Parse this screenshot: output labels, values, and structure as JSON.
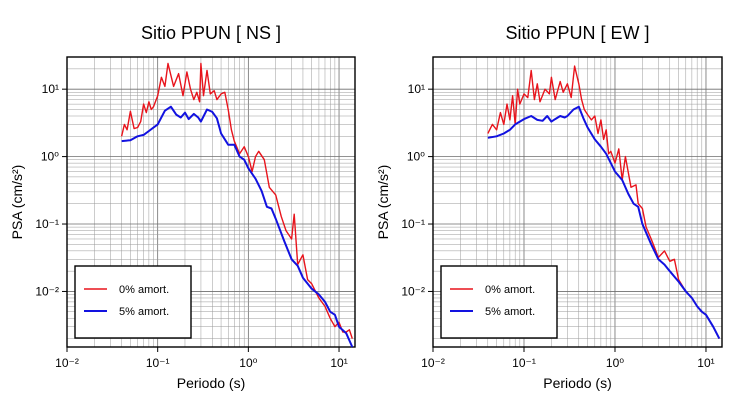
{
  "chart_data": [
    {
      "type": "line",
      "title": "Sitio PPUN [ NS ]",
      "xlabel": "Periodo (s)",
      "ylabel": "PSA (cm/s²)",
      "xscale": "log",
      "yscale": "log",
      "xlim": [
        0.01,
        15
      ],
      "ylim": [
        0.0015,
        30
      ],
      "xticks": [
        "10⁻²",
        "10⁻¹",
        "10⁰",
        "10¹"
      ],
      "yticks": [
        "10⁻²",
        "10⁻¹",
        "10⁰",
        "10¹"
      ],
      "grid": true,
      "legend_position": "bottom-left",
      "series": [
        {
          "name": "0% amort.",
          "color": "#e8141c",
          "x": [
            0.04,
            0.043,
            0.046,
            0.05,
            0.055,
            0.06,
            0.065,
            0.07,
            0.075,
            0.08,
            0.085,
            0.09,
            0.1,
            0.11,
            0.12,
            0.13,
            0.15,
            0.17,
            0.19,
            0.21,
            0.23,
            0.25,
            0.27,
            0.29,
            0.3,
            0.32,
            0.35,
            0.38,
            0.42,
            0.45,
            0.5,
            0.55,
            0.6,
            0.65,
            0.7,
            0.8,
            0.9,
            1.0,
            1.1,
            1.2,
            1.3,
            1.5,
            1.7,
            2.0,
            2.3,
            2.6,
            3.0,
            3.2,
            3.5,
            4.0,
            4.5,
            5.0,
            5.5,
            6.0,
            7.0,
            8.0,
            9.0,
            10.0,
            11.0,
            12.0,
            13.0,
            14.0
          ],
          "y": [
            2.0,
            3.0,
            2.5,
            4.7,
            2.6,
            2.7,
            3.3,
            6.0,
            4.5,
            6.5,
            5.0,
            5.5,
            8.0,
            15.0,
            11.0,
            24.0,
            11.0,
            17.0,
            8.0,
            18.0,
            10.0,
            7.0,
            9.0,
            6.5,
            24.0,
            8.0,
            19.0,
            8.5,
            9.5,
            7.0,
            8.5,
            9.0,
            5.0,
            2.5,
            1.7,
            1.1,
            1.4,
            1.0,
            0.6,
            1.0,
            1.2,
            0.9,
            0.35,
            0.27,
            0.13,
            0.08,
            0.06,
            0.14,
            0.025,
            0.035,
            0.015,
            0.013,
            0.01,
            0.008,
            0.006,
            0.004,
            0.003,
            0.0035,
            0.0025,
            0.0025,
            0.0027,
            0.002
          ]
        },
        {
          "name": "5% amort.",
          "color": "#1212e0",
          "x": [
            0.04,
            0.05,
            0.06,
            0.07,
            0.08,
            0.1,
            0.12,
            0.14,
            0.16,
            0.18,
            0.2,
            0.22,
            0.25,
            0.28,
            0.3,
            0.35,
            0.4,
            0.45,
            0.5,
            0.6,
            0.7,
            0.8,
            0.9,
            1.0,
            1.2,
            1.4,
            1.6,
            1.8,
            2.0,
            2.5,
            3.0,
            3.5,
            4.0,
            5.0,
            6.0,
            7.0,
            8.0,
            9.0,
            10.0,
            12.0,
            14.0
          ],
          "y": [
            1.7,
            1.75,
            2.0,
            2.1,
            2.4,
            3.0,
            4.8,
            5.5,
            4.2,
            3.8,
            4.5,
            3.6,
            4.3,
            3.8,
            3.3,
            5.0,
            4.6,
            3.7,
            2.2,
            1.5,
            1.5,
            1.0,
            0.9,
            0.67,
            0.47,
            0.31,
            0.18,
            0.17,
            0.12,
            0.055,
            0.03,
            0.024,
            0.016,
            0.011,
            0.009,
            0.007,
            0.005,
            0.0045,
            0.003,
            0.0024,
            0.0015
          ]
        }
      ]
    },
    {
      "type": "line",
      "title": "Sitio PPUN [ EW ]",
      "xlabel": "Periodo (s)",
      "ylabel": "PSA (cm/s²)",
      "xscale": "log",
      "yscale": "log",
      "xlim": [
        0.01,
        15
      ],
      "ylim": [
        0.0015,
        30
      ],
      "xticks": [
        "10⁻²",
        "10⁻¹",
        "10⁰",
        "10¹"
      ],
      "yticks": [
        "10⁻²",
        "10⁻¹",
        "10⁰",
        "10¹"
      ],
      "grid": true,
      "legend_position": "bottom-left",
      "series": [
        {
          "name": "0% amort.",
          "color": "#e8141c",
          "x": [
            0.04,
            0.045,
            0.05,
            0.055,
            0.06,
            0.065,
            0.07,
            0.075,
            0.08,
            0.085,
            0.09,
            0.1,
            0.11,
            0.12,
            0.13,
            0.14,
            0.15,
            0.17,
            0.19,
            0.2,
            0.22,
            0.25,
            0.27,
            0.3,
            0.33,
            0.36,
            0.4,
            0.43,
            0.46,
            0.5,
            0.55,
            0.6,
            0.65,
            0.7,
            0.75,
            0.8,
            0.85,
            0.9,
            1.0,
            1.1,
            1.2,
            1.3,
            1.5,
            1.7,
            1.8,
            2.0,
            2.2,
            2.5,
            3.0,
            3.5,
            4.0,
            4.5,
            5.0,
            6.0,
            7.0,
            8.0,
            9.0,
            10.0,
            12.0,
            14.0
          ],
          "y": [
            2.2,
            3.0,
            2.5,
            4.5,
            3.0,
            6.0,
            3.5,
            8.0,
            3.0,
            10.0,
            6.0,
            8.5,
            7.5,
            19.0,
            7.0,
            12.0,
            6.5,
            10.0,
            8.5,
            15.0,
            7.0,
            13.0,
            9.0,
            12.0,
            7.5,
            22.0,
            12.0,
            7.0,
            5.0,
            4.2,
            3.5,
            4.0,
            2.2,
            3.5,
            1.8,
            2.5,
            1.1,
            1.2,
            0.8,
            1.3,
            0.45,
            1.0,
            0.35,
            0.38,
            0.2,
            0.17,
            0.09,
            0.06,
            0.032,
            0.04,
            0.028,
            0.03,
            0.015,
            0.01,
            0.008,
            0.006,
            0.005,
            0.0045,
            0.003,
            0.002
          ]
        },
        {
          "name": "5% amort.",
          "color": "#1212e0",
          "x": [
            0.04,
            0.05,
            0.06,
            0.07,
            0.08,
            0.1,
            0.12,
            0.14,
            0.16,
            0.18,
            0.2,
            0.22,
            0.25,
            0.28,
            0.3,
            0.35,
            0.4,
            0.45,
            0.5,
            0.6,
            0.7,
            0.8,
            0.9,
            1.0,
            1.2,
            1.4,
            1.6,
            1.8,
            2.0,
            2.5,
            3.0,
            3.5,
            4.0,
            5.0,
            6.0,
            7.0,
            8.0,
            9.0,
            10.0,
            12.0,
            14.0
          ],
          "y": [
            1.9,
            2.0,
            2.2,
            2.5,
            3.0,
            3.6,
            4.0,
            3.5,
            3.4,
            4.0,
            3.3,
            3.6,
            4.0,
            3.8,
            4.0,
            5.0,
            5.5,
            3.7,
            2.7,
            1.8,
            1.4,
            1.1,
            0.8,
            0.6,
            0.45,
            0.28,
            0.2,
            0.18,
            0.1,
            0.05,
            0.03,
            0.025,
            0.02,
            0.014,
            0.01,
            0.008,
            0.006,
            0.005,
            0.0045,
            0.003,
            0.002
          ]
        }
      ]
    }
  ]
}
